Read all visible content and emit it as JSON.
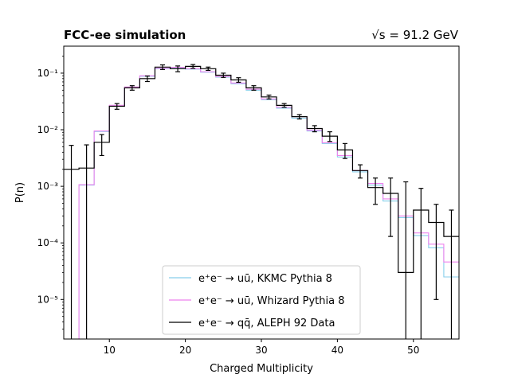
{
  "chart_data": {
    "type": "line",
    "title_left": "FCC-ee simulation",
    "title_right": "√s = 91.2 GeV",
    "xlabel": "Charged Multiplicity",
    "ylabel": "P(n)",
    "xlim": [
      4,
      56
    ],
    "ylim": [
      2e-06,
      0.3
    ],
    "yscale": "log",
    "x_ticks": [
      10,
      20,
      30,
      40,
      50
    ],
    "y_ticks": [
      {
        "value": 1e-05,
        "label": "10⁻⁵"
      },
      {
        "value": 0.0001,
        "label": "10⁻⁴"
      },
      {
        "value": 0.001,
        "label": "10⁻³"
      },
      {
        "value": 0.01,
        "label": "10⁻²"
      },
      {
        "value": 0.1,
        "label": "10⁻¹"
      }
    ],
    "grid": false,
    "legend_position": "lower-center",
    "bin_edges": [
      4,
      6,
      8,
      10,
      12,
      14,
      16,
      18,
      20,
      22,
      24,
      26,
      28,
      30,
      32,
      34,
      36,
      38,
      40,
      42,
      44,
      46,
      48,
      50,
      52,
      54,
      56
    ],
    "series": [
      {
        "name": "e⁺e⁻ → uū, KKMC Pythia 8",
        "color": "#87ceeb",
        "values": [
          1e-06,
          0.00105,
          0.0093,
          0.026,
          0.055,
          0.088,
          0.12,
          0.125,
          0.118,
          0.104,
          0.085,
          0.065,
          0.05,
          0.034,
          0.024,
          0.016,
          0.0095,
          0.0057,
          0.0033,
          0.0018,
          0.00105,
          0.00055,
          0.00028,
          0.000135,
          8.2e-05,
          2.5e-05
        ]
      },
      {
        "name": "e⁺e⁻ → uū, Whizard Pythia 8",
        "color": "#ee82ee",
        "values": [
          1e-06,
          0.00107,
          0.0095,
          0.027,
          0.057,
          0.09,
          0.122,
          0.127,
          0.12,
          0.106,
          0.087,
          0.067,
          0.052,
          0.035,
          0.025,
          0.017,
          0.0098,
          0.0059,
          0.0035,
          0.0019,
          0.00112,
          0.0006,
          0.0003,
          0.00015,
          9.5e-05,
          4.6e-05
        ]
      },
      {
        "name": "e⁺e⁻ → qq̄, ALEPH 92 Data",
        "color": "#000000",
        "values": [
          0.002,
          0.0021,
          0.006,
          0.026,
          0.055,
          0.08,
          0.128,
          0.12,
          0.132,
          0.12,
          0.092,
          0.076,
          0.055,
          0.038,
          0.027,
          0.017,
          0.0105,
          0.0077,
          0.0044,
          0.0019,
          0.00095,
          0.00075,
          3e-05,
          0.00038,
          0.00023,
          0.00013
        ],
        "err_low": [
          1e-06,
          1e-06,
          0.0035,
          0.023,
          0.05,
          0.071,
          0.116,
          0.106,
          0.122,
          0.112,
          0.084,
          0.069,
          0.05,
          0.035,
          0.025,
          0.0155,
          0.0092,
          0.0062,
          0.0031,
          0.0014,
          0.00048,
          0.00013,
          1e-06,
          1e-06,
          1e-05,
          1e-06
        ],
        "err_high": [
          0.0053,
          0.0054,
          0.0082,
          0.029,
          0.06,
          0.089,
          0.14,
          0.134,
          0.142,
          0.128,
          0.1,
          0.083,
          0.06,
          0.041,
          0.029,
          0.0185,
          0.0118,
          0.0092,
          0.0057,
          0.0024,
          0.0014,
          0.0014,
          0.0012,
          0.00092,
          0.00048,
          0.00038
        ]
      }
    ]
  }
}
